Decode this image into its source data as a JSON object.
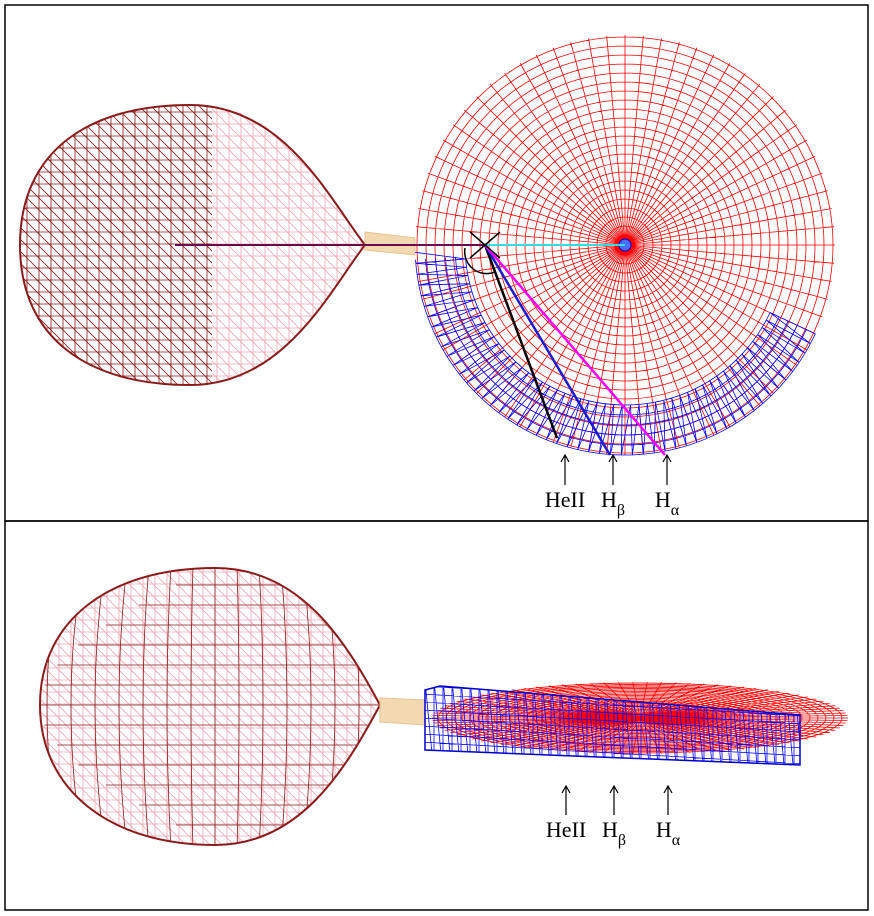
{
  "top": {
    "labels": [
      {
        "text": "HeII"
      },
      {
        "text": "H",
        "sub": "β"
      },
      {
        "text": "H",
        "sub": "α"
      }
    ]
  },
  "bottom": {
    "labels": [
      {
        "text": "HeII"
      },
      {
        "text": "H",
        "sub": "β"
      },
      {
        "text": "H",
        "sub": "α"
      }
    ]
  }
}
